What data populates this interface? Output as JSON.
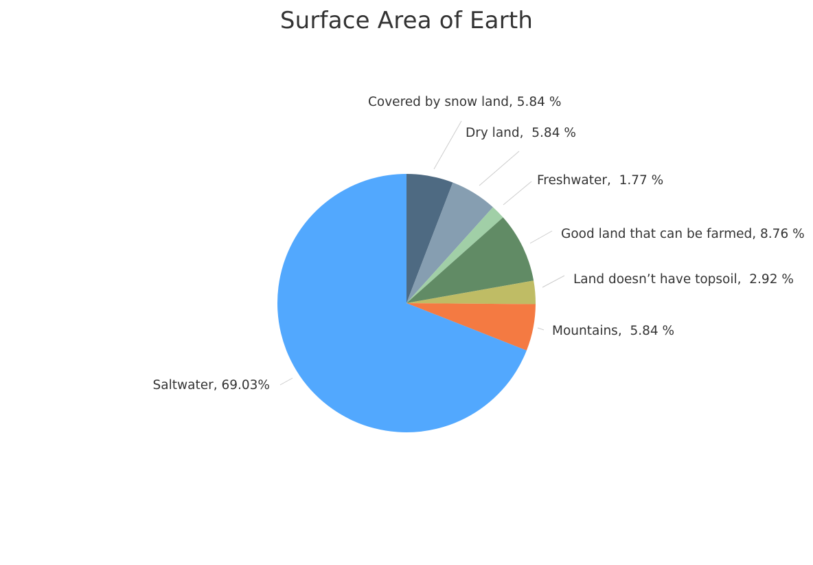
{
  "colors": {
    "background": "#ffffff",
    "text": "#333333",
    "leader_line": "#cccccc"
  },
  "chart_data": {
    "type": "pie",
    "title": "Surface Area of Earth",
    "start": "12 o'clock, clockwise",
    "slices": [
      {
        "label": "Covered by snow land",
        "value": 5.84,
        "label_text": "Covered by snow land, 5.84 %",
        "color": "#4e6a82"
      },
      {
        "label": "Dry land",
        "value": 5.84,
        "label_text": "Dry land,  5.84 %",
        "color": "#869eb1"
      },
      {
        "label": "Freshwater",
        "value": 1.77,
        "label_text": "Freshwater,  1.77 %",
        "color": "#a1cfa7"
      },
      {
        "label": "Good land that can be farmed",
        "value": 8.76,
        "label_text": "Good land that can be farmed, 8.76 %",
        "color": "#618b65"
      },
      {
        "label": "Land doesn’t have topsoil",
        "value": 2.92,
        "label_text": "Land doesn’t have topsoil,  2.92 %",
        "color": "#bfbc65"
      },
      {
        "label": "Mountains",
        "value": 5.84,
        "label_text": "Mountains,  5.84 %",
        "color": "#f47a42"
      },
      {
        "label": "Saltwater",
        "value": 69.03,
        "label_text": "Saltwater, 69.03%",
        "color": "#52a8fe"
      }
    ]
  }
}
